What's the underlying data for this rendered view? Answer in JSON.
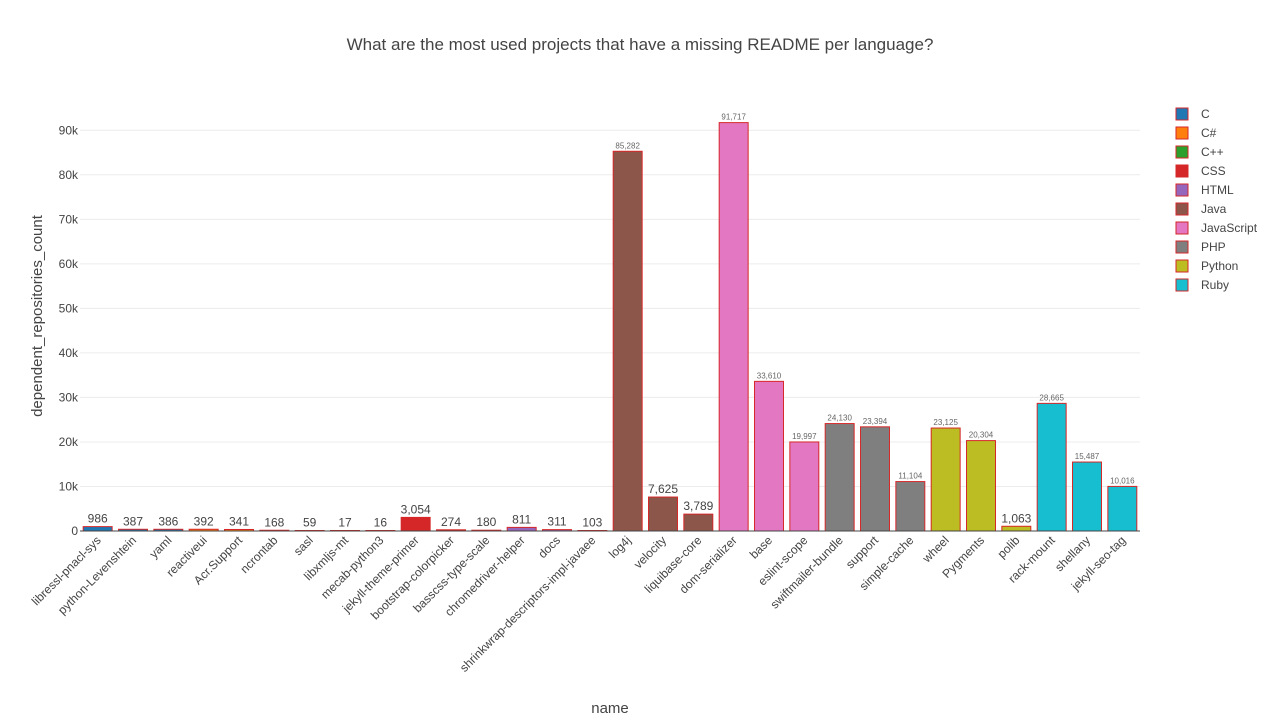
{
  "chart_data": {
    "type": "bar",
    "title": "What are the most used projects that have a missing README per language?",
    "xlabel": "name",
    "ylabel": "dependent_repositories_count",
    "ylim": [
      0,
      95000
    ],
    "yticks": [
      0,
      10000,
      20000,
      30000,
      40000,
      50000,
      60000,
      70000,
      80000,
      90000
    ],
    "ytick_labels": [
      "0",
      "10k",
      "20k",
      "30k",
      "40k",
      "50k",
      "60k",
      "70k",
      "80k",
      "90k"
    ],
    "grid": true,
    "legend_position": "top-right",
    "legend": [
      {
        "name": "C",
        "color": "#1f77b4"
      },
      {
        "name": "C#",
        "color": "#ff7f0e"
      },
      {
        "name": "C++",
        "color": "#2ca02c"
      },
      {
        "name": "CSS",
        "color": "#d62728"
      },
      {
        "name": "HTML",
        "color": "#9467bd"
      },
      {
        "name": "Java",
        "color": "#8c564b"
      },
      {
        "name": "JavaScript",
        "color": "#e377c2"
      },
      {
        "name": "PHP",
        "color": "#7f7f7f"
      },
      {
        "name": "Python",
        "color": "#bcbd22"
      },
      {
        "name": "Ruby",
        "color": "#17becf"
      }
    ],
    "bar_outline_color": "#d62728",
    "bars": [
      {
        "name": "libressl-pnacl-sys",
        "value": 986,
        "label": "986",
        "language": "C"
      },
      {
        "name": "python-Levenshtein",
        "value": 387,
        "label": "387",
        "language": "C"
      },
      {
        "name": "yaml",
        "value": 386,
        "label": "386",
        "language": "C"
      },
      {
        "name": "reactiveui",
        "value": 392,
        "label": "392",
        "language": "C#"
      },
      {
        "name": "Acr.Support",
        "value": 341,
        "label": "341",
        "language": "C#"
      },
      {
        "name": "ncrontab",
        "value": 168,
        "label": "168",
        "language": "C#"
      },
      {
        "name": "sasl",
        "value": 59,
        "label": "59",
        "language": "C++"
      },
      {
        "name": "libxmljs-mt",
        "value": 17,
        "label": "17",
        "language": "C++"
      },
      {
        "name": "mecab-python3",
        "value": 16,
        "label": "16",
        "language": "C++"
      },
      {
        "name": "jekyll-theme-primer",
        "value": 3054,
        "label": "3,054",
        "language": "CSS"
      },
      {
        "name": "bootstrap-colorpicker",
        "value": 274,
        "label": "274",
        "language": "CSS"
      },
      {
        "name": "basscss-type-scale",
        "value": 180,
        "label": "180",
        "language": "CSS"
      },
      {
        "name": "chromedriver-helper",
        "value": 811,
        "label": "811",
        "language": "HTML"
      },
      {
        "name": "docs",
        "value": 311,
        "label": "311",
        "language": "HTML"
      },
      {
        "name": "shrinkwrap-descriptors-impl-javaee",
        "value": 103,
        "label": "103",
        "language": "HTML"
      },
      {
        "name": "log4j",
        "value": 85282,
        "label": "85,282",
        "language": "Java"
      },
      {
        "name": "velocity",
        "value": 7625,
        "label": "7,625",
        "language": "Java"
      },
      {
        "name": "liquibase-core",
        "value": 3789,
        "label": "3,789",
        "language": "Java"
      },
      {
        "name": "dom-serializer",
        "value": 91717,
        "label": "91,717",
        "language": "JavaScript"
      },
      {
        "name": "base",
        "value": 33610,
        "label": "33,610",
        "language": "JavaScript"
      },
      {
        "name": "eslint-scope",
        "value": 19997,
        "label": "19,997",
        "language": "JavaScript"
      },
      {
        "name": "swiftmailer-bundle",
        "value": 24130,
        "label": "24,130",
        "language": "PHP"
      },
      {
        "name": "support",
        "value": 23394,
        "label": "23,394",
        "language": "PHP"
      },
      {
        "name": "simple-cache",
        "value": 11104,
        "label": "11,104",
        "language": "PHP"
      },
      {
        "name": "wheel",
        "value": 23125,
        "label": "23,125",
        "language": "Python"
      },
      {
        "name": "Pygments",
        "value": 20304,
        "label": "20,304",
        "language": "Python"
      },
      {
        "name": "polib",
        "value": 1063,
        "label": "1,063",
        "language": "Python"
      },
      {
        "name": "rack-mount",
        "value": 28665,
        "label": "28,665",
        "language": "Ruby"
      },
      {
        "name": "shellany",
        "value": 15487,
        "label": "15,487",
        "language": "Ruby"
      },
      {
        "name": "jekyll-seo-tag",
        "value": 10016,
        "label": "10,016",
        "language": "Ruby"
      }
    ]
  }
}
